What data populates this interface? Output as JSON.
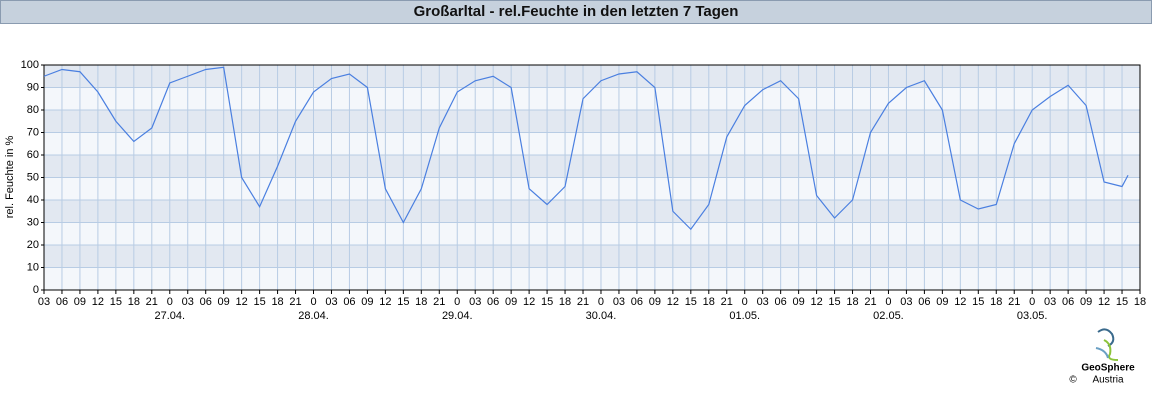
{
  "chart_data": {
    "type": "line",
    "title": "Großarltal - rel.Feuchte in den letzten 7 Tagen",
    "y_label": "rel. Feuchte in %",
    "x": [
      0,
      3,
      6,
      9,
      12,
      15,
      18,
      21,
      24,
      27,
      30,
      33,
      36,
      39,
      42,
      45,
      48,
      51,
      54,
      57,
      60,
      63,
      66,
      69,
      72,
      75,
      78,
      81,
      84,
      87,
      90,
      93,
      96,
      99,
      102,
      105,
      108,
      111,
      114,
      117,
      120,
      123,
      126,
      129,
      132,
      135,
      138,
      141,
      144,
      147,
      150,
      153,
      156,
      159,
      162,
      165,
      168,
      171,
      174,
      177,
      180,
      181
    ],
    "series": [
      {
        "color": "#4a7fe0",
        "values": [
          95,
          98,
          97,
          88,
          75,
          66,
          72,
          92,
          95,
          98,
          99,
          50,
          37,
          55,
          75,
          88,
          94,
          96,
          90,
          45,
          30,
          45,
          72,
          88,
          93,
          95,
          90,
          45,
          38,
          46,
          85,
          93,
          96,
          97,
          90,
          35,
          27,
          38,
          68,
          82,
          89,
          93,
          85,
          42,
          32,
          40,
          70,
          83,
          90,
          93,
          80,
          40,
          36,
          38,
          65,
          80,
          86,
          91,
          82,
          48,
          46,
          51
        ]
      }
    ],
    "xlim": [
      0,
      183
    ],
    "ylim": [
      0,
      100
    ],
    "yticks": [
      0,
      10,
      20,
      30,
      40,
      50,
      60,
      70,
      80,
      90,
      100
    ],
    "xticks": [
      {
        "value": 0,
        "label": "03"
      },
      {
        "value": 3,
        "label": "06"
      },
      {
        "value": 6,
        "label": "09"
      },
      {
        "value": 9,
        "label": "12"
      },
      {
        "value": 12,
        "label": "15"
      },
      {
        "value": 15,
        "label": "18"
      },
      {
        "value": 18,
        "label": "21"
      },
      {
        "value": 21,
        "label": "0"
      },
      {
        "value": 24,
        "label": "03"
      },
      {
        "value": 27,
        "label": "06"
      },
      {
        "value": 30,
        "label": "09"
      },
      {
        "value": 33,
        "label": "12"
      },
      {
        "value": 36,
        "label": "15"
      },
      {
        "value": 39,
        "label": "18"
      },
      {
        "value": 42,
        "label": "21"
      },
      {
        "value": 45,
        "label": "0"
      },
      {
        "value": 48,
        "label": "03"
      },
      {
        "value": 51,
        "label": "06"
      },
      {
        "value": 54,
        "label": "09"
      },
      {
        "value": 57,
        "label": "12"
      },
      {
        "value": 60,
        "label": "15"
      },
      {
        "value": 63,
        "label": "18"
      },
      {
        "value": 66,
        "label": "21"
      },
      {
        "value": 69,
        "label": "0"
      },
      {
        "value": 72,
        "label": "03"
      },
      {
        "value": 75,
        "label": "06"
      },
      {
        "value": 78,
        "label": "09"
      },
      {
        "value": 81,
        "label": "12"
      },
      {
        "value": 84,
        "label": "15"
      },
      {
        "value": 87,
        "label": "18"
      },
      {
        "value": 90,
        "label": "21"
      },
      {
        "value": 93,
        "label": "0"
      },
      {
        "value": 96,
        "label": "03"
      },
      {
        "value": 99,
        "label": "06"
      },
      {
        "value": 102,
        "label": "09"
      },
      {
        "value": 105,
        "label": "12"
      },
      {
        "value": 108,
        "label": "15"
      },
      {
        "value": 111,
        "label": "18"
      },
      {
        "value": 114,
        "label": "21"
      },
      {
        "value": 117,
        "label": "0"
      },
      {
        "value": 120,
        "label": "03"
      },
      {
        "value": 123,
        "label": "06"
      },
      {
        "value": 126,
        "label": "09"
      },
      {
        "value": 129,
        "label": "12"
      },
      {
        "value": 132,
        "label": "15"
      },
      {
        "value": 135,
        "label": "18"
      },
      {
        "value": 138,
        "label": "21"
      },
      {
        "value": 141,
        "label": "0"
      },
      {
        "value": 144,
        "label": "03"
      },
      {
        "value": 147,
        "label": "06"
      },
      {
        "value": 150,
        "label": "09"
      },
      {
        "value": 153,
        "label": "12"
      },
      {
        "value": 156,
        "label": "15"
      },
      {
        "value": 159,
        "label": "18"
      },
      {
        "value": 162,
        "label": "21"
      },
      {
        "value": 165,
        "label": "0"
      },
      {
        "value": 168,
        "label": "03"
      },
      {
        "value": 171,
        "label": "06"
      },
      {
        "value": 174,
        "label": "09"
      },
      {
        "value": 177,
        "label": "12"
      },
      {
        "value": 180,
        "label": "15"
      },
      {
        "value": 183,
        "label": "18"
      }
    ],
    "date_labels": [
      {
        "value": 21,
        "label": "27.04."
      },
      {
        "value": 45,
        "label": "28.04."
      },
      {
        "value": 69,
        "label": "29.04."
      },
      {
        "value": 93,
        "label": "30.04."
      },
      {
        "value": 117,
        "label": "01.05."
      },
      {
        "value": 141,
        "label": "02.05."
      },
      {
        "value": 165,
        "label": "03.05."
      }
    ],
    "grid": true,
    "logo": {
      "name": "GeoSphere",
      "sub": "Austria",
      "copyright": "©"
    }
  }
}
